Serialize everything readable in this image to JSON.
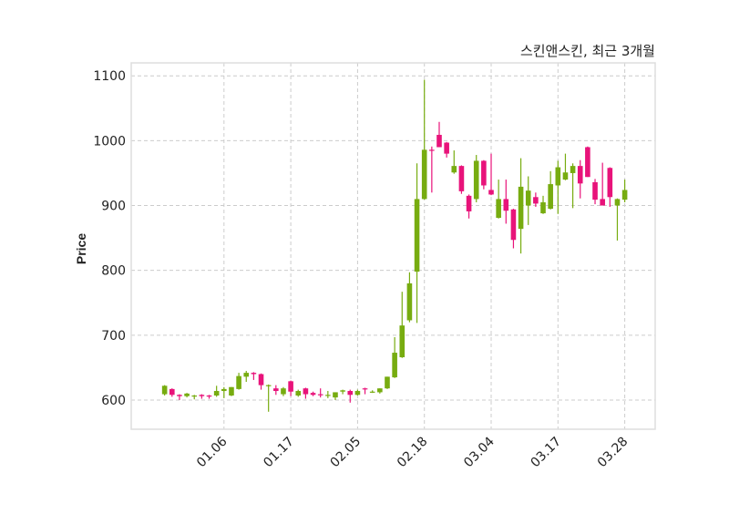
{
  "chart_data": {
    "type": "candlestick",
    "title": "스킨앤스킨, 최근 3개월",
    "xlabel": "",
    "ylabel": "Price",
    "ylim": [
      555,
      1120
    ],
    "xlim": [
      -4.5,
      66.1
    ],
    "yticks": [
      600,
      700,
      800,
      900,
      1000,
      1100
    ],
    "xticks": [
      {
        "index": 8,
        "label": "01.06"
      },
      {
        "index": 17,
        "label": "01.17"
      },
      {
        "index": 26,
        "label": "02.05"
      },
      {
        "index": 35,
        "label": "02.18"
      },
      {
        "index": 44,
        "label": "03.04"
      },
      {
        "index": 53,
        "label": "03.17"
      },
      {
        "index": 62,
        "label": "03.28"
      }
    ],
    "grid": true,
    "colors": {
      "up": "#77ac10",
      "down": "#e8137a",
      "grid": "#cccccc",
      "frame": "#dddddd"
    },
    "ohlc_fields": [
      "open",
      "high",
      "low",
      "close"
    ],
    "ohlc": [
      [
        609,
        623,
        607,
        622
      ],
      [
        617,
        618,
        605,
        608
      ],
      [
        608,
        609,
        600,
        606
      ],
      [
        606,
        611,
        604,
        610
      ],
      [
        606,
        608,
        601,
        607
      ],
      [
        608,
        609,
        602,
        606
      ],
      [
        607,
        608,
        602,
        606
      ],
      [
        607,
        622,
        605,
        614
      ],
      [
        614,
        620,
        603,
        617
      ],
      [
        607,
        620,
        606,
        620
      ],
      [
        617,
        642,
        616,
        637
      ],
      [
        636,
        645,
        628,
        642
      ],
      [
        642,
        643,
        631,
        640
      ],
      [
        640,
        641,
        616,
        623
      ],
      [
        622,
        624,
        582,
        623
      ],
      [
        618,
        623,
        608,
        614
      ],
      [
        609,
        620,
        606,
        618
      ],
      [
        629,
        630,
        606,
        613
      ],
      [
        607,
        616,
        605,
        614
      ],
      [
        618,
        619,
        602,
        609
      ],
      [
        611,
        613,
        606,
        608
      ],
      [
        609,
        618,
        604,
        608
      ],
      [
        608,
        614,
        603,
        608
      ],
      [
        604,
        612,
        600,
        612
      ],
      [
        613,
        616,
        609,
        615
      ],
      [
        614,
        616,
        596,
        608
      ],
      [
        608,
        616,
        607,
        614
      ],
      [
        618,
        619,
        609,
        617
      ],
      [
        612,
        615,
        611,
        613
      ],
      [
        612,
        618,
        610,
        618
      ],
      [
        618,
        636,
        617,
        636
      ],
      [
        635,
        697,
        634,
        673
      ],
      [
        666,
        767,
        665,
        715
      ],
      [
        723,
        797,
        720,
        780
      ],
      [
        798,
        965,
        719,
        910
      ],
      [
        910,
        1094,
        909,
        986
      ],
      [
        986,
        991,
        920,
        985
      ],
      [
        1009,
        1029,
        990,
        990
      ],
      [
        997,
        998,
        974,
        980
      ],
      [
        951,
        985,
        949,
        961
      ],
      [
        961,
        962,
        918,
        922
      ],
      [
        915,
        917,
        880,
        891
      ],
      [
        910,
        978,
        905,
        969
      ],
      [
        969,
        970,
        925,
        931
      ],
      [
        924,
        980,
        916,
        917
      ],
      [
        881,
        940,
        880,
        910
      ],
      [
        910,
        940,
        872,
        892
      ],
      [
        894,
        895,
        834,
        847
      ],
      [
        864,
        973,
        826,
        929
      ],
      [
        900,
        945,
        870,
        923
      ],
      [
        913,
        920,
        898,
        903
      ],
      [
        888,
        915,
        887,
        905
      ],
      [
        895,
        953,
        894,
        933
      ],
      [
        931,
        969,
        887,
        959
      ],
      [
        940,
        980,
        939,
        951
      ],
      [
        950,
        965,
        896,
        961
      ],
      [
        961,
        970,
        911,
        934
      ],
      [
        990,
        991,
        944,
        944
      ],
      [
        936,
        941,
        902,
        909
      ],
      [
        910,
        966,
        900,
        900
      ],
      [
        958,
        959,
        898,
        913
      ],
      [
        900,
        911,
        846,
        910
      ],
      [
        909,
        940,
        905,
        924
      ]
    ]
  }
}
